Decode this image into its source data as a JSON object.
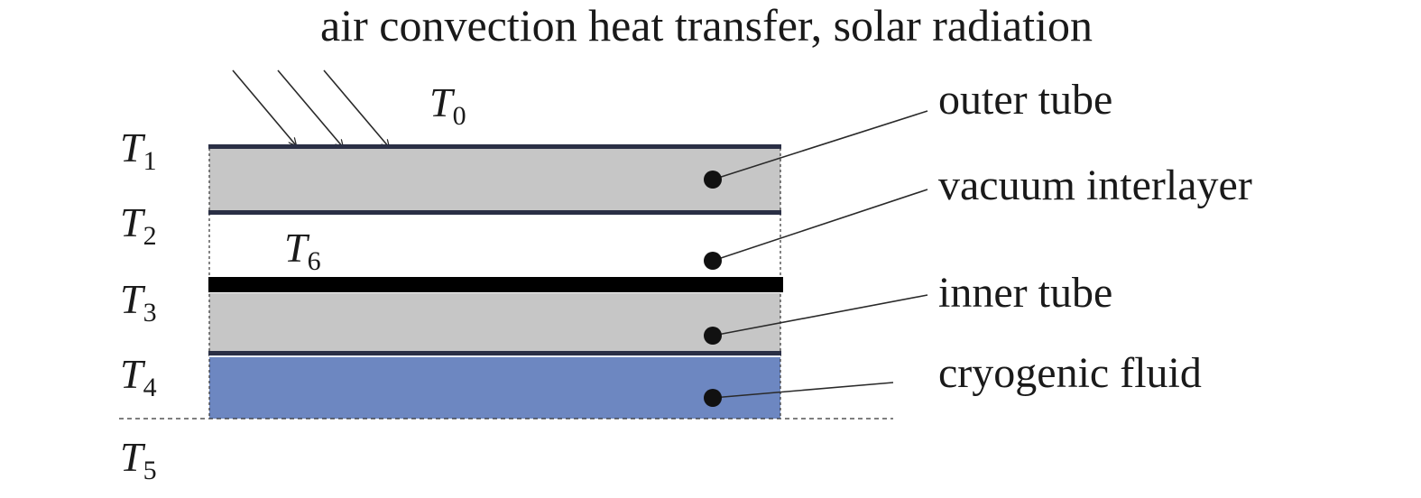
{
  "title": "air convection heat transfer, solar radiation",
  "colors": {
    "tube": "#c6c6c6",
    "fluid": "#6d87c1",
    "wall_thin": "#2a2f45",
    "wall_thick": "#000000",
    "leader": "#2a2a2a",
    "arrow": "#2a2a2a"
  },
  "layers": [
    {
      "key": "outer",
      "label": "outer tube"
    },
    {
      "key": "vacuum",
      "label": "vacuum interlayer"
    },
    {
      "key": "inner",
      "label": "inner tube"
    },
    {
      "key": "fluid",
      "label": "cryogenic fluid"
    }
  ],
  "temperatures": {
    "t0": {
      "symbol": "T",
      "sub": "0"
    },
    "t1": {
      "symbol": "T",
      "sub": "1"
    },
    "t2": {
      "symbol": "T",
      "sub": "2"
    },
    "t3": {
      "symbol": "T",
      "sub": "3"
    },
    "t4": {
      "symbol": "T",
      "sub": "4"
    },
    "t5": {
      "symbol": "T",
      "sub": "5"
    },
    "t6": {
      "symbol": "T",
      "sub": "6"
    }
  }
}
